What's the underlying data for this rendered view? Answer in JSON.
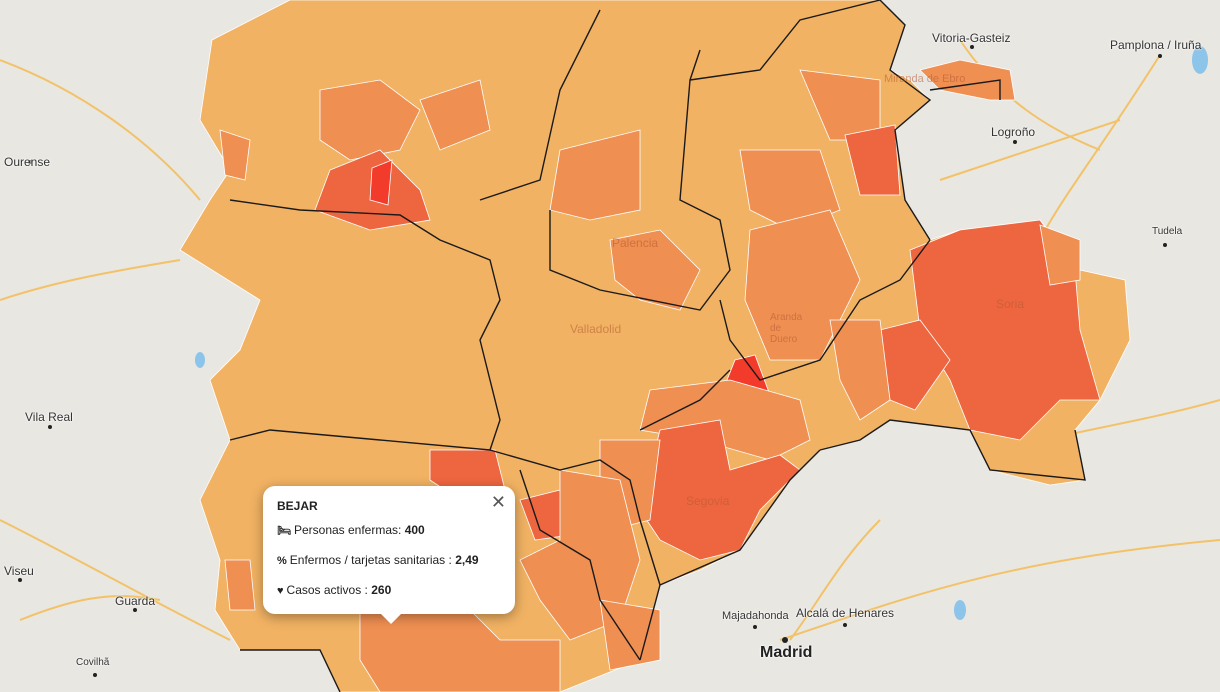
{
  "map": {
    "colors": {
      "background": "#e9e7e2",
      "low": "#f1b263",
      "mid": "#ef8f52",
      "high": "#ee6640",
      "max": "#f23b2a",
      "border": "#1a1a1a",
      "roads": "#f5b94a",
      "water": "#8cc4ea"
    },
    "places": [
      {
        "name": "Vitoria-Gasteiz",
        "kind": "city"
      },
      {
        "name": "Pamplona / Iruña",
        "kind": "city"
      },
      {
        "name": "Ourense",
        "kind": "city"
      },
      {
        "name": "Logroño",
        "kind": "city"
      },
      {
        "name": "Tudela",
        "kind": "town"
      },
      {
        "name": "Vila Real",
        "kind": "city"
      },
      {
        "name": "Viseu",
        "kind": "city"
      },
      {
        "name": "Guarda",
        "kind": "city"
      },
      {
        "name": "Covilhã",
        "kind": "town"
      },
      {
        "name": "Majadahonda",
        "kind": "town"
      },
      {
        "name": "Alcalá de Henares",
        "kind": "city"
      },
      {
        "name": "Madrid",
        "kind": "capital"
      },
      {
        "name": "Soria",
        "kind": "faint"
      },
      {
        "name": "Segovia",
        "kind": "faint"
      },
      {
        "name": "Valladolid",
        "kind": "faint"
      },
      {
        "name": "Palencia",
        "kind": "faint"
      },
      {
        "name": "Aranda de Duero",
        "kind": "faint"
      },
      {
        "name": "Miranda de Ebro",
        "kind": "faint"
      }
    ]
  },
  "popup": {
    "title": "BEJAR",
    "close_icon": "close-icon",
    "rows": [
      {
        "icon": "bed-icon",
        "label": "Personas enfermas:",
        "value": "400"
      },
      {
        "icon": "percent-icon",
        "label": "Enfermos / tarjetas sanitarias :",
        "value": "2,49"
      },
      {
        "icon": "heartbeat-icon",
        "label": "Casos activos :",
        "value": "260"
      }
    ]
  }
}
